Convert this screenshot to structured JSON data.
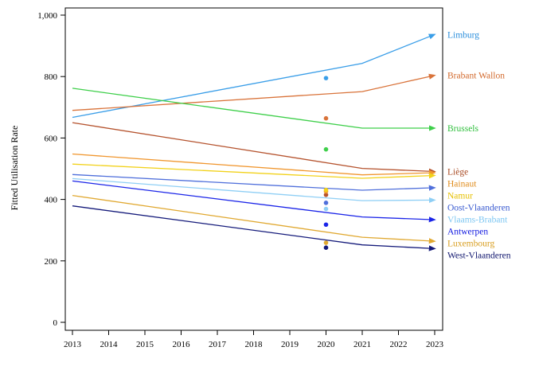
{
  "chart_data": {
    "type": "line",
    "title": "",
    "xlabel": "",
    "ylabel": "Fitted Utilisation Rate",
    "x": [
      2013,
      2014,
      2015,
      2016,
      2017,
      2018,
      2019,
      2020,
      2021,
      2022,
      2023
    ],
    "xlim": [
      2013,
      2023
    ],
    "ylim": [
      0,
      1000
    ],
    "y_ticks": [
      0,
      200,
      400,
      600,
      800,
      1000
    ],
    "y_tick_labels": [
      "0",
      "200",
      "400",
      "600",
      "800",
      "1,000"
    ],
    "grid": false,
    "legend": "direct labels at right end of lines",
    "series": [
      {
        "name": "Limburg",
        "color": "#3a9ee8",
        "line": [
          [
            2013,
            667
          ],
          [
            2021,
            843
          ],
          [
            2023,
            937
          ]
        ],
        "point": [
          2020,
          795
        ]
      },
      {
        "name": "Brabant Wallon",
        "color": "#d9733a",
        "line": [
          [
            2013,
            690
          ],
          [
            2021,
            751
          ],
          [
            2023,
            804
          ]
        ],
        "point": [
          2020,
          664
        ]
      },
      {
        "name": "Brussels",
        "color": "#3ecf4a",
        "line": [
          [
            2013,
            762
          ],
          [
            2021,
            632
          ],
          [
            2023,
            632
          ]
        ],
        "point": [
          2020,
          563
        ]
      },
      {
        "name": "Liège",
        "color": "#b5532e",
        "line": [
          [
            2013,
            650
          ],
          [
            2021,
            501
          ],
          [
            2023,
            491
          ]
        ],
        "point": [
          2020,
          415
        ]
      },
      {
        "name": "Hainaut",
        "color": "#f0962e",
        "line": [
          [
            2013,
            548
          ],
          [
            2021,
            480
          ],
          [
            2023,
            487
          ]
        ],
        "point": [
          2020,
          426
        ]
      },
      {
        "name": "Namur",
        "color": "#f2d21c",
        "line": [
          [
            2013,
            515
          ],
          [
            2021,
            469
          ],
          [
            2023,
            478
          ]
        ],
        "point": [
          2020,
          431
        ]
      },
      {
        "name": "Oost-Vlaanderen",
        "color": "#4f6fdb",
        "line": [
          [
            2013,
            481
          ],
          [
            2021,
            430
          ],
          [
            2023,
            438
          ]
        ],
        "point": [
          2020,
          389
        ]
      },
      {
        "name": "Vlaams-Brabant",
        "color": "#8fcff5",
        "line": [
          [
            2013,
            468
          ],
          [
            2021,
            396
          ],
          [
            2023,
            398
          ]
        ],
        "point": [
          2020,
          369
        ]
      },
      {
        "name": "Antwerpen",
        "color": "#1a24e8",
        "line": [
          [
            2013,
            460
          ],
          [
            2021,
            343
          ],
          [
            2023,
            334
          ]
        ],
        "point": [
          2020,
          318
        ]
      },
      {
        "name": "Luxembourg",
        "color": "#e0a830",
        "line": [
          [
            2013,
            413
          ],
          [
            2021,
            277
          ],
          [
            2023,
            264
          ]
        ],
        "point": [
          2020,
          259
        ]
      },
      {
        "name": "West-Vlaanderen",
        "color": "#141a7a",
        "line": [
          [
            2013,
            379
          ],
          [
            2021,
            252
          ],
          [
            2023,
            240
          ]
        ],
        "point": [
          2020,
          243
        ]
      }
    ],
    "label_colors": {
      "Limburg": "#2c8fdc",
      "Brabant Wallon": "#d2692c",
      "Brussels": "#2fbf3c",
      "Liège": "#a84a22",
      "Hainaut": "#e08c1c",
      "Namur": "#e6c000",
      "Oost-Vlaanderen": "#3a5bd0",
      "Vlaams-Brabant": "#7cc6f2",
      "Antwerpen": "#1018e0",
      "Luxembourg": "#d89e20",
      "West-Vlaanderen": "#10166e"
    }
  }
}
